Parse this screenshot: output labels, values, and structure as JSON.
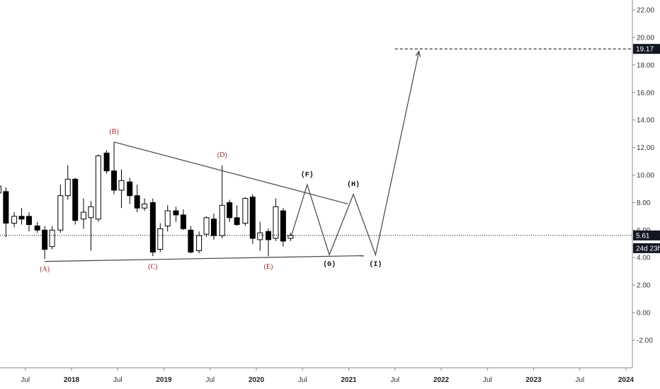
{
  "chart_data": {
    "type": "candlestick",
    "price_axis": {
      "ticks": [
        "22.00",
        "20.00",
        "18.00",
        "16.00",
        "14.00",
        "12.00",
        "10.00",
        "8.00",
        "6.00",
        "4.00",
        "2.00",
        "0.00",
        "-2.00"
      ],
      "tick_values": [
        22,
        20,
        18,
        16,
        14,
        12,
        10,
        8,
        6,
        4,
        2,
        0,
        -2
      ],
      "ylim": [
        -3.8,
        22.6
      ]
    },
    "time_axis": {
      "labels": [
        {
          "text": "Jul",
          "t": 2017.5,
          "bold": false
        },
        {
          "text": "2018",
          "t": 2018.0,
          "bold": true
        },
        {
          "text": "Jul",
          "t": 2018.5,
          "bold": false
        },
        {
          "text": "2019",
          "t": 2019.0,
          "bold": true
        },
        {
          "text": "Jul",
          "t": 2019.5,
          "bold": false
        },
        {
          "text": "2020",
          "t": 2020.0,
          "bold": true
        },
        {
          "text": "Jul",
          "t": 2020.5,
          "bold": false
        },
        {
          "text": "2021",
          "t": 2021.0,
          "bold": true
        },
        {
          "text": "Jul",
          "t": 2021.5,
          "bold": false
        },
        {
          "text": "2022",
          "t": 2022.0,
          "bold": true
        },
        {
          "text": "Jul",
          "t": 2022.5,
          "bold": false
        },
        {
          "text": "2023",
          "t": 2023.0,
          "bold": true
        },
        {
          "text": "Jul",
          "t": 2023.5,
          "bold": false
        },
        {
          "text": "2024",
          "t": 2024.0,
          "bold": true
        }
      ]
    },
    "candles": [
      {
        "t": 2017.21,
        "o": 8.7,
        "h": 10.3,
        "l": 8.3,
        "c": 9.2
      },
      {
        "t": 2017.29,
        "o": 8.8,
        "h": 9.1,
        "l": 5.5,
        "c": 6.5
      },
      {
        "t": 2017.38,
        "o": 6.5,
        "h": 7.3,
        "l": 6.2,
        "c": 7.0
      },
      {
        "t": 2017.46,
        "o": 7.0,
        "h": 7.6,
        "l": 6.4,
        "c": 6.8
      },
      {
        "t": 2017.54,
        "o": 7.0,
        "h": 7.3,
        "l": 5.9,
        "c": 6.4
      },
      {
        "t": 2017.63,
        "o": 6.3,
        "h": 6.6,
        "l": 5.8,
        "c": 6.0
      },
      {
        "t": 2017.71,
        "o": 6.0,
        "h": 6.3,
        "l": 3.9,
        "c": 4.6
      },
      {
        "t": 2017.79,
        "o": 4.8,
        "h": 6.3,
        "l": 4.6,
        "c": 6.0
      },
      {
        "t": 2017.88,
        "o": 6.0,
        "h": 9.3,
        "l": 5.8,
        "c": 8.5
      },
      {
        "t": 2017.96,
        "o": 8.5,
        "h": 10.7,
        "l": 8.2,
        "c": 9.7
      },
      {
        "t": 2018.04,
        "o": 9.7,
        "h": 9.8,
        "l": 6.4,
        "c": 6.7
      },
      {
        "t": 2018.13,
        "o": 6.8,
        "h": 8.3,
        "l": 6.1,
        "c": 7.3
      },
      {
        "t": 2018.21,
        "o": 6.9,
        "h": 8.1,
        "l": 4.5,
        "c": 7.7
      },
      {
        "t": 2018.29,
        "o": 6.8,
        "h": 11.5,
        "l": 6.6,
        "c": 11.4
      },
      {
        "t": 2018.38,
        "o": 11.6,
        "h": 11.8,
        "l": 10.1,
        "c": 10.3
      },
      {
        "t": 2018.46,
        "o": 10.3,
        "h": 12.4,
        "l": 8.6,
        "c": 8.9
      },
      {
        "t": 2018.54,
        "o": 8.9,
        "h": 10.4,
        "l": 7.6,
        "c": 9.6
      },
      {
        "t": 2018.63,
        "o": 9.5,
        "h": 9.8,
        "l": 7.9,
        "c": 8.5
      },
      {
        "t": 2018.71,
        "o": 8.5,
        "h": 9.3,
        "l": 7.3,
        "c": 7.6
      },
      {
        "t": 2018.79,
        "o": 7.6,
        "h": 8.3,
        "l": 7.4,
        "c": 7.9
      },
      {
        "t": 2018.88,
        "o": 8.0,
        "h": 8.3,
        "l": 4.1,
        "c": 4.4
      },
      {
        "t": 2018.96,
        "o": 4.6,
        "h": 6.5,
        "l": 4.4,
        "c": 6.1
      },
      {
        "t": 2019.04,
        "o": 6.3,
        "h": 7.8,
        "l": 5.9,
        "c": 7.4
      },
      {
        "t": 2019.13,
        "o": 7.4,
        "h": 7.7,
        "l": 6.6,
        "c": 7.1
      },
      {
        "t": 2019.21,
        "o": 7.1,
        "h": 7.5,
        "l": 6.0,
        "c": 6.1
      },
      {
        "t": 2019.29,
        "o": 6.0,
        "h": 6.3,
        "l": 4.3,
        "c": 4.4
      },
      {
        "t": 2019.38,
        "o": 4.5,
        "h": 5.9,
        "l": 4.3,
        "c": 5.6
      },
      {
        "t": 2019.46,
        "o": 5.7,
        "h": 7.0,
        "l": 5.5,
        "c": 6.9
      },
      {
        "t": 2019.54,
        "o": 6.8,
        "h": 7.2,
        "l": 5.3,
        "c": 5.6
      },
      {
        "t": 2019.63,
        "o": 5.6,
        "h": 10.7,
        "l": 5.4,
        "c": 7.8
      },
      {
        "t": 2019.71,
        "o": 8.0,
        "h": 8.2,
        "l": 6.6,
        "c": 6.9
      },
      {
        "t": 2019.79,
        "o": 6.9,
        "h": 7.8,
        "l": 6.3,
        "c": 6.4
      },
      {
        "t": 2019.88,
        "o": 6.5,
        "h": 8.4,
        "l": 6.3,
        "c": 8.3
      },
      {
        "t": 2019.96,
        "o": 8.4,
        "h": 8.6,
        "l": 5.0,
        "c": 5.4
      },
      {
        "t": 2020.04,
        "o": 5.3,
        "h": 6.6,
        "l": 4.5,
        "c": 5.8
      },
      {
        "t": 2020.13,
        "o": 5.9,
        "h": 6.1,
        "l": 4.1,
        "c": 5.3
      },
      {
        "t": 2020.21,
        "o": 5.4,
        "h": 8.3,
        "l": 5.2,
        "c": 7.7
      },
      {
        "t": 2020.29,
        "o": 7.4,
        "h": 7.6,
        "l": 4.8,
        "c": 5.2
      },
      {
        "t": 2020.37,
        "o": 5.4,
        "h": 5.8,
        "l": 5.2,
        "c": 5.61
      }
    ],
    "trendlines": [
      {
        "from": [
          2018.46,
          12.4
        ],
        "to": [
          2020.99,
          7.9
        ]
      },
      {
        "from": [
          2017.71,
          3.72
        ],
        "to": [
          2021.16,
          4.14
        ]
      }
    ],
    "projection_path": [
      [
        2020.38,
        5.61
      ],
      [
        2020.55,
        9.3
      ],
      [
        2020.79,
        4.2
      ],
      [
        2021.05,
        8.6
      ],
      [
        2021.29,
        4.2
      ],
      [
        2021.76,
        19.0
      ]
    ],
    "target": {
      "t_from": 2021.5,
      "value": 19.17,
      "label": "19.17"
    },
    "current_price": {
      "value": 5.61,
      "label": "5.61",
      "countdown": "24d 23h"
    },
    "wave_labels": [
      {
        "text": "(A)",
        "t": 2017.71,
        "y": 3.0,
        "color": "red"
      },
      {
        "text": "(B)",
        "t": 2018.46,
        "y": 13.0,
        "color": "red"
      },
      {
        "text": "(C)",
        "t": 2018.88,
        "y": 3.2,
        "color": "red"
      },
      {
        "text": "(D)",
        "t": 2019.63,
        "y": 11.3,
        "color": "red"
      },
      {
        "text": "(E)",
        "t": 2020.13,
        "y": 3.2,
        "color": "red"
      },
      {
        "text": "(F)",
        "t": 2020.55,
        "y": 9.9,
        "color": "black"
      },
      {
        "text": "(G)",
        "t": 2020.79,
        "y": 3.4,
        "color": "black"
      },
      {
        "text": "(H)",
        "t": 2021.05,
        "y": 9.2,
        "color": "black"
      },
      {
        "text": "(I)",
        "t": 2021.29,
        "y": 3.4,
        "color": "black"
      }
    ],
    "colors": {
      "up_body": "#ffffff",
      "down_body": "#000000",
      "line": "#444444",
      "red_label": "#9a1f1f",
      "price_tag_bg": "#131722",
      "price_tag_text": "#ffffff"
    }
  }
}
